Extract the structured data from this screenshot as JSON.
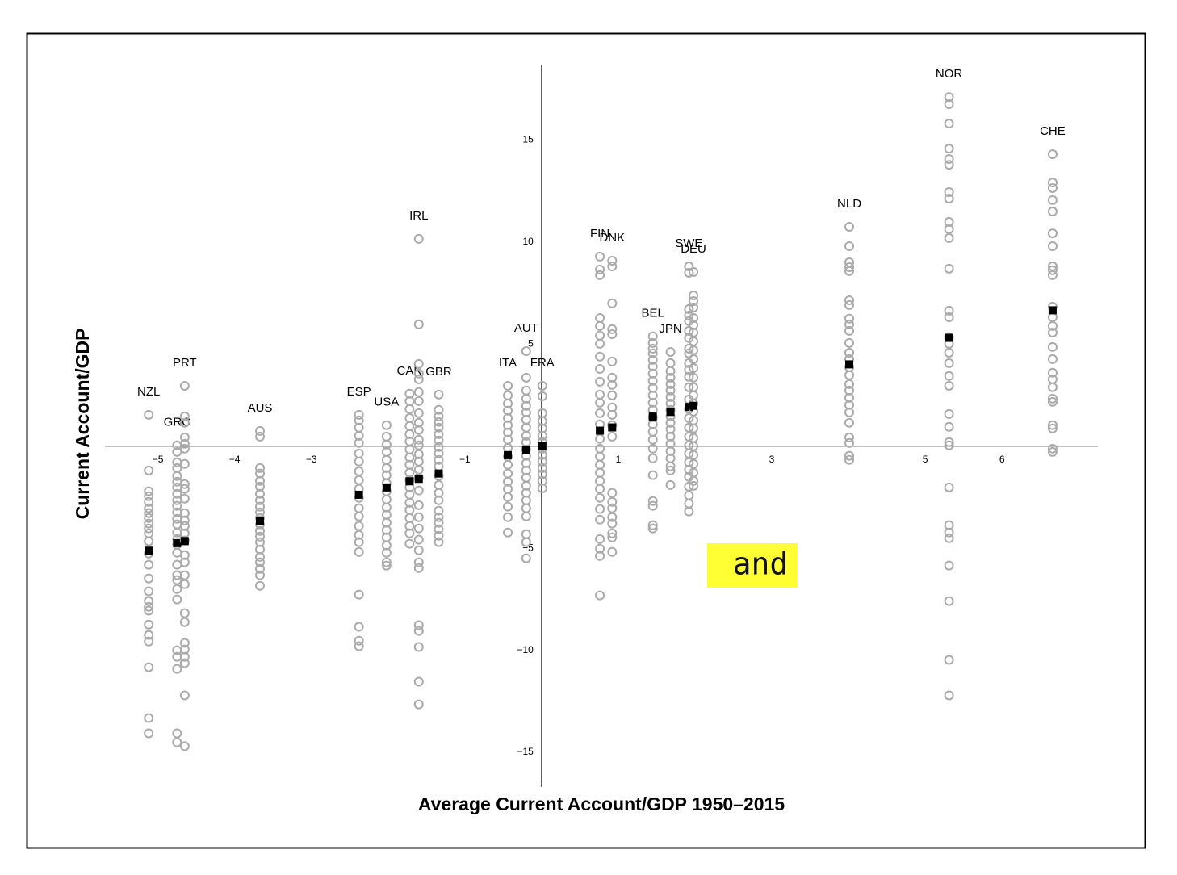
{
  "chart_data": {
    "type": "scatter",
    "x_label": "Average Current Account/GDP 1950–2015",
    "y_label": "Current Account/GDP",
    "xlim": [
      -5.69,
      7.25
    ],
    "ylim": [
      -16.7,
      18.7
    ],
    "xticks": [
      {
        "value": -5,
        "label": "−5"
      },
      {
        "value": -4,
        "label": "−4"
      },
      {
        "value": -3,
        "label": "−3"
      },
      {
        "value": -1,
        "label": "−1"
      },
      1,
      3,
      5,
      6
    ],
    "yticks": [
      {
        "value": -15,
        "label": "−15"
      },
      {
        "value": -10,
        "label": "−10"
      },
      {
        "value": -5,
        "label": "−5"
      },
      5,
      10,
      15
    ],
    "point_color": "#aaaaaa",
    "mean_color": "#000000",
    "countries": [
      {
        "name": "NZL",
        "x": -5.12,
        "values": [
          1.54,
          -1.19,
          -2.21,
          -2.45,
          -2.73,
          -3.04,
          -3.28,
          -3.52,
          -3.79,
          -4.03,
          -4.27,
          -4.66,
          -5.26,
          -5.81,
          -6.48,
          -7.11,
          -7.59,
          -7.87,
          -8.06,
          -8.74,
          -9.25,
          -9.57,
          -10.83,
          -13.32,
          -14.07
        ]
      },
      {
        "name": "GRC",
        "x": -4.75,
        "values": [
          0.04,
          -0.28,
          -0.79,
          -1.07,
          -1.46,
          -1.74,
          -2.02,
          -2.33,
          -2.65,
          -2.92,
          -3.24,
          -3.56,
          -3.83,
          -4.23,
          -4.55,
          -4.82,
          -5.22,
          -5.81,
          -6.32,
          -6.56,
          -7.0,
          -7.51,
          -10.0,
          -10.32,
          -10.91,
          -14.07,
          -14.51
        ]
      },
      {
        "name": "PRT",
        "x": -4.65,
        "values": [
          2.96,
          1.46,
          1.15,
          0.43,
          0.12,
          -0.12,
          -0.87,
          -1.86,
          -2.09,
          -2.57,
          -3.28,
          -3.64,
          -3.91,
          -4.27,
          -4.62,
          -5.34,
          -5.69,
          -6.32,
          -6.76,
          -8.18,
          -8.62,
          -9.64,
          -9.96,
          -10.32,
          -10.63,
          -12.21,
          -14.7
        ]
      },
      {
        "name": "AUS",
        "x": -3.67,
        "values": [
          0.75,
          0.47,
          -1.07,
          -1.34,
          -1.7,
          -1.98,
          -2.33,
          -2.65,
          -2.96,
          -3.24,
          -3.52,
          -3.83,
          -4.15,
          -4.43,
          -4.7,
          -5.06,
          -5.42,
          -5.69,
          -6.01,
          -6.32,
          -6.84
        ]
      },
      {
        "name": "ESP",
        "x": -2.38,
        "values": [
          1.54,
          1.26,
          0.91,
          0.51,
          0.16,
          -0.36,
          -0.75,
          -1.23,
          -1.66,
          -2.09,
          -2.53,
          -3.04,
          -3.44,
          -3.91,
          -4.35,
          -4.7,
          -5.18,
          -7.27,
          -8.85,
          -9.53,
          -9.8
        ]
      },
      {
        "name": "USA",
        "x": -2.02,
        "values": [
          1.03,
          0.47,
          0.08,
          -0.28,
          -0.67,
          -1.07,
          -1.42,
          -1.82,
          -2.21,
          -2.61,
          -3.0,
          -3.36,
          -3.75,
          -4.11,
          -4.47,
          -4.86,
          -5.22,
          -5.69,
          -5.85
        ]
      },
      {
        "name": "CAN",
        "x": -1.72,
        "values": [
          2.57,
          2.21,
          1.82,
          1.38,
          0.99,
          0.59,
          0.24,
          -0.16,
          -0.55,
          -0.91,
          -1.3,
          -1.66,
          -2.02,
          -2.37,
          -2.77,
          -3.12,
          -3.52,
          -3.91,
          -4.27,
          -4.78
        ]
      },
      {
        "name": "IRL",
        "x": -1.6,
        "values": [
          10.16,
          5.97,
          4.03,
          3.56,
          3.28,
          2.65,
          2.21,
          1.62,
          1.15,
          0.79,
          0.32,
          0.04,
          -0.4,
          -0.75,
          -1.15,
          -1.54,
          -2.17,
          -2.89,
          -3.48,
          -4.03,
          -4.58,
          -5.1,
          -5.69,
          -5.97,
          -8.77,
          -9.05,
          -9.84,
          -11.54,
          -12.65
        ]
      },
      {
        "name": "GBR",
        "x": -1.34,
        "values": [
          2.53,
          1.78,
          1.46,
          1.19,
          0.91,
          0.59,
          0.28,
          -0.04,
          -0.36,
          -0.67,
          -0.99,
          -1.46,
          -1.9,
          -2.29,
          -2.65,
          -3.16,
          -3.48,
          -3.75,
          -4.07,
          -4.39,
          -4.7
        ]
      },
      {
        "name": "ITA",
        "x": -0.44,
        "values": [
          2.96,
          2.49,
          2.09,
          1.74,
          1.38,
          1.03,
          0.67,
          0.32,
          -0.08,
          -0.51,
          -0.91,
          -1.34,
          -1.74,
          -2.09,
          -2.49,
          -2.96,
          -3.48,
          -4.23
        ]
      },
      {
        "name": "AUT",
        "x": -0.2,
        "values": [
          4.66,
          3.36,
          2.73,
          2.33,
          1.98,
          1.66,
          1.3,
          0.91,
          0.51,
          0.2,
          -0.16,
          -0.47,
          -0.83,
          -1.19,
          -1.54,
          -1.94,
          -2.29,
          -2.65,
          -3.04,
          -3.44,
          -4.31,
          -4.7,
          -5.49
        ]
      },
      {
        "name": "FRA",
        "x": 0.01,
        "values": [
          2.96,
          2.45,
          1.62,
          1.23,
          0.87,
          0.51,
          0.2,
          -0.12,
          -0.43,
          -0.75,
          -1.07,
          -1.38,
          -1.7,
          -2.06
        ]
      },
      {
        "name": "FIN",
        "x": 0.76,
        "values": [
          9.29,
          8.66,
          8.38,
          6.28,
          5.89,
          5.42,
          5.02,
          4.39,
          3.79,
          3.16,
          2.53,
          2.13,
          1.62,
          1.07,
          0.36,
          -0.12,
          -0.51,
          -0.91,
          -1.3,
          -1.7,
          -2.09,
          -2.53,
          -3.08,
          -3.6,
          -4.55,
          -5.02,
          -5.38,
          -7.31
        ]
      },
      {
        "name": "DNK",
        "x": 0.92,
        "values": [
          9.09,
          8.81,
          7.0,
          5.73,
          5.49,
          4.15,
          3.36,
          3.0,
          2.49,
          1.9,
          1.54,
          1.03,
          0.47,
          -2.29,
          -2.73,
          -3.04,
          -3.48,
          -3.79,
          -4.27,
          -4.47,
          -5.18
        ]
      },
      {
        "name": "BEL",
        "x": 1.45,
        "values": [
          5.38,
          5.06,
          4.78,
          4.55,
          4.23,
          3.91,
          3.56,
          3.2,
          2.85,
          2.49,
          2.13,
          1.78,
          1.42,
          1.07,
          0.71,
          0.32,
          -0.12,
          -0.59,
          -1.42,
          -2.69,
          -2.92,
          -3.87,
          -4.03
        ]
      },
      {
        "name": "JPN",
        "x": 1.68,
        "values": [
          4.62,
          4.07,
          3.68,
          3.36,
          3.04,
          2.73,
          2.41,
          2.09,
          1.78,
          1.46,
          1.15,
          0.83,
          0.47,
          0.12,
          -0.24,
          -0.59,
          -0.99,
          -1.19,
          -1.9
        ]
      },
      {
        "name": "SWE",
        "x": 1.92,
        "values": [
          8.81,
          8.5,
          6.72,
          6.4,
          6.13,
          5.65,
          5.3,
          4.78,
          4.55,
          4.07,
          3.75,
          3.4,
          2.89,
          2.29,
          1.82,
          1.38,
          0.91,
          0.47,
          0.04,
          -0.36,
          -0.79,
          -1.15,
          -1.5,
          -1.98,
          -2.41,
          -2.81,
          -3.2
        ]
      },
      {
        "name": "DEU",
        "x": 1.98,
        "values": [
          8.54,
          7.39,
          7.11,
          6.8,
          6.28,
          5.93,
          5.57,
          5.14,
          4.7,
          4.27,
          3.83,
          3.36,
          2.89,
          2.49,
          2.09,
          1.7,
          1.26,
          0.87,
          0.4,
          0.0,
          -0.43,
          -0.87,
          -1.3,
          -1.7,
          -1.94
        ]
      },
      {
        "name": "NLD",
        "x": 4.01,
        "values": [
          10.75,
          9.8,
          9.01,
          8.77,
          8.58,
          7.15,
          6.92,
          6.25,
          5.97,
          5.65,
          5.06,
          4.58,
          4.27,
          3.87,
          3.48,
          3.04,
          2.73,
          2.37,
          2.02,
          1.66,
          1.15,
          0.43,
          0.16,
          -0.47,
          -0.67
        ]
      },
      {
        "name": "NOR",
        "x": 5.31,
        "values": [
          17.11,
          16.76,
          15.81,
          14.58,
          14.07,
          13.79,
          12.45,
          12.13,
          10.99,
          10.63,
          10.2,
          8.7,
          6.64,
          6.32,
          5.34,
          5.02,
          4.58,
          4.07,
          3.44,
          2.96,
          1.58,
          0.95,
          0.2,
          0.04,
          -2.02,
          -3.87,
          -4.23,
          -4.51,
          -5.85,
          -7.59,
          -10.47,
          -12.21
        ]
      },
      {
        "name": "CHE",
        "x": 6.66,
        "values": [
          14.31,
          12.92,
          12.65,
          12.06,
          11.5,
          10.43,
          9.8,
          8.81,
          8.62,
          8.38,
          6.84,
          6.32,
          5.89,
          5.57,
          4.86,
          4.27,
          3.6,
          3.28,
          2.89,
          2.33,
          2.17,
          1.03,
          0.87,
          -0.12,
          -0.28
        ]
      }
    ]
  },
  "overlay_text": "and"
}
